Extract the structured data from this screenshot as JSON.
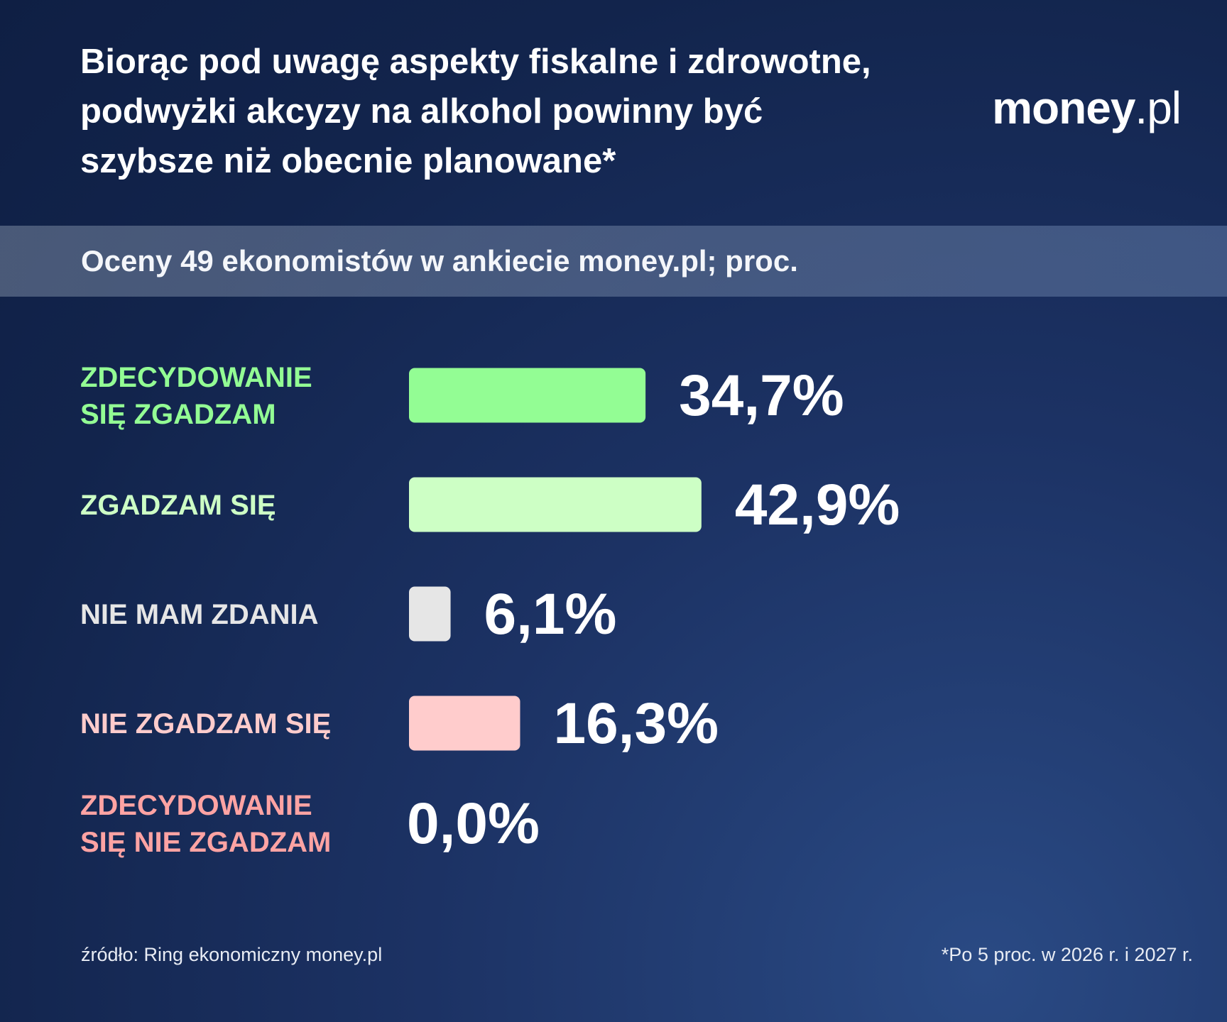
{
  "header": {
    "title_lines": [
      "Biorąc pod uwagę aspekty fiskalne i zdrowotne,",
      "podwyżki akcyzy na alkohol powinny być",
      "szybsze niż obecnie planowane*"
    ],
    "logo_brand": "money",
    "logo_tld": ".pl",
    "subtitle": "Oceny 49 ekonomistów w ankiecie money.pl; proc."
  },
  "chart_data": {
    "type": "bar",
    "orientation": "horizontal",
    "title": "Biorąc pod uwagę aspekty fiskalne i zdrowotne, podwyżki akcyzy na alkohol powinny być szybsze niż obecnie planowane*",
    "subtitle": "Oceny 49 ekonomistów w ankiecie money.pl; proc.",
    "categories": [
      [
        "ZDECYDOWANIE",
        "SIĘ ZGADZAM"
      ],
      [
        "ZGADZAM SIĘ"
      ],
      [
        "NIE MAM ZDANIA"
      ],
      [
        "NIE ZGADZAM SIĘ"
      ],
      [
        "ZDECYDOWANIE",
        "SIĘ NIE ZGADZAM"
      ]
    ],
    "values": [
      34.7,
      42.9,
      6.1,
      16.3,
      0.0
    ],
    "value_labels": [
      "34,7%",
      "42,9%",
      "6,1%",
      "16,3%",
      "0,0%"
    ],
    "colors": [
      "#93fd94",
      "#cdffc5",
      "#e6e6e6",
      "#ffcccc",
      "#ff9a9a"
    ],
    "label_colors": [
      "#93fd94",
      "#cdffc5",
      "#e6e6e6",
      "#ffcccc",
      "#ffa3a3"
    ],
    "unit": "%",
    "grid": false,
    "legend": "none"
  },
  "footer": {
    "source": "źródło: Ring ekonomiczny money.pl",
    "note": "*Po 5 proc. w 2026 r. i 2027 r."
  }
}
